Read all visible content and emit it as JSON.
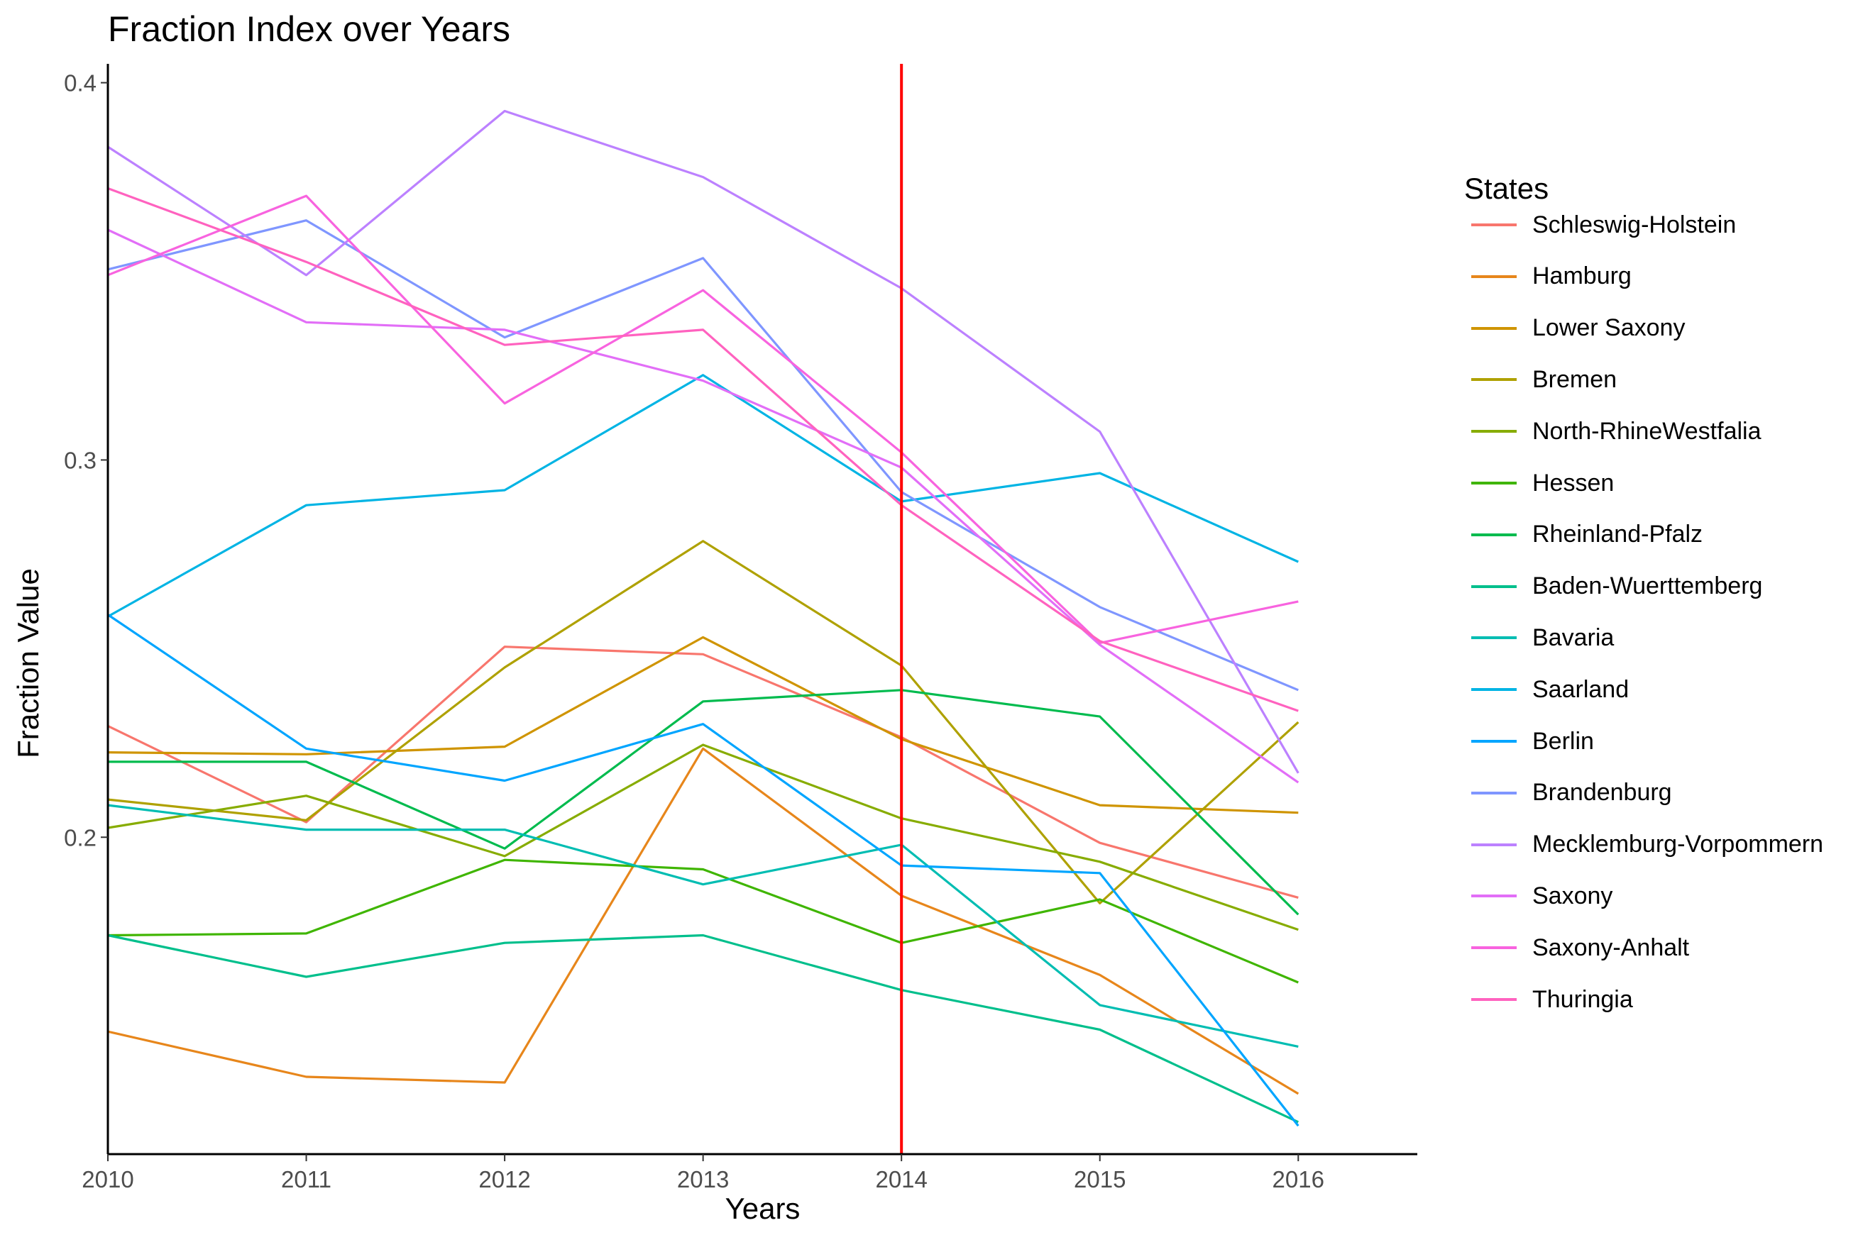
{
  "chart_data": {
    "type": "line",
    "title": "Fraction Index over Years",
    "xlabel": "Years",
    "ylabel": "Fraction Value",
    "x": [
      2010,
      2011,
      2012,
      2013,
      2014,
      2015,
      2016
    ],
    "x_tick_labels": [
      "2010",
      "2011",
      "2012",
      "2013",
      "2014",
      "2015",
      "2016"
    ],
    "xlim": [
      2010,
      2016.6
    ],
    "ylim": [
      0.116,
      0.405
    ],
    "y_ticks": [
      0.2,
      0.3,
      0.4
    ],
    "y_tick_labels": [
      "0.2",
      "0.3",
      "0.4"
    ],
    "grid": false,
    "vline": {
      "x": 2014,
      "color": "#ff0000"
    },
    "legend_title": "States",
    "legend_position": "right",
    "series": [
      {
        "name": "Schleswig-Holstein",
        "color": "#F8766D",
        "values": [
          0.2295,
          0.204,
          0.2505,
          0.2485,
          0.2265,
          0.1985,
          0.184
        ]
      },
      {
        "name": "Hamburg",
        "color": "#E7861B",
        "values": [
          0.1485,
          0.1365,
          0.135,
          0.2235,
          0.1845,
          0.1635,
          0.132
        ]
      },
      {
        "name": "Lower Saxony",
        "color": "#CF9400",
        "values": [
          0.2225,
          0.222,
          0.224,
          0.253,
          0.226,
          0.2085,
          0.2065
        ]
      },
      {
        "name": "Bremen",
        "color": "#AFA100",
        "values": [
          0.21,
          0.2045,
          0.245,
          0.2785,
          0.2455,
          0.1825,
          0.2305
        ]
      },
      {
        "name": "North-RhineWestfalia",
        "color": "#87AC00",
        "values": [
          0.2025,
          0.211,
          0.195,
          0.2245,
          0.205,
          0.1935,
          0.1755
        ]
      },
      {
        "name": "Hessen",
        "color": "#3FB500",
        "values": [
          0.174,
          0.1745,
          0.194,
          0.1915,
          0.172,
          0.1835,
          0.1615
        ]
      },
      {
        "name": "Rheinland-Pfalz",
        "color": "#00BB4E",
        "values": [
          0.22,
          0.22,
          0.197,
          0.236,
          0.239,
          0.232,
          0.1795
        ]
      },
      {
        "name": "Baden-Wuerttemberg",
        "color": "#00BF8C",
        "values": [
          0.174,
          0.163,
          0.172,
          0.174,
          0.1595,
          0.149,
          0.1245
        ]
      },
      {
        "name": "Bavaria",
        "color": "#00BDB2",
        "values": [
          0.2085,
          0.202,
          0.202,
          0.1875,
          0.198,
          0.1555,
          0.1445
        ]
      },
      {
        "name": "Saarland",
        "color": "#00B4E4",
        "values": [
          0.2585,
          0.288,
          0.292,
          0.3225,
          0.289,
          0.2965,
          0.273
        ]
      },
      {
        "name": "Berlin",
        "color": "#00A5FF",
        "values": [
          0.259,
          0.2235,
          0.215,
          0.23,
          0.1925,
          0.1905,
          0.1235
        ]
      },
      {
        "name": "Brandenburg",
        "color": "#7F96FF",
        "values": [
          0.3505,
          0.3635,
          0.3325,
          0.3535,
          0.2915,
          0.261,
          0.239
        ]
      },
      {
        "name": "Mecklemburg-Vorpommern",
        "color": "#BC81FF",
        "values": [
          0.383,
          0.349,
          0.3925,
          0.375,
          0.3455,
          0.3075,
          0.217
        ]
      },
      {
        "name": "Saxony",
        "color": "#E26EF7",
        "values": [
          0.361,
          0.3365,
          0.3345,
          0.321,
          0.298,
          0.251,
          0.2145
        ]
      },
      {
        "name": "Saxony-Anhalt",
        "color": "#F863DF",
        "values": [
          0.349,
          0.37,
          0.315,
          0.345,
          0.302,
          0.2515,
          0.2625
        ]
      },
      {
        "name": "Thuringia",
        "color": "#FF62BF",
        "values": [
          0.372,
          0.3525,
          0.3305,
          0.3345,
          0.288,
          0.252,
          0.2335
        ]
      }
    ]
  }
}
